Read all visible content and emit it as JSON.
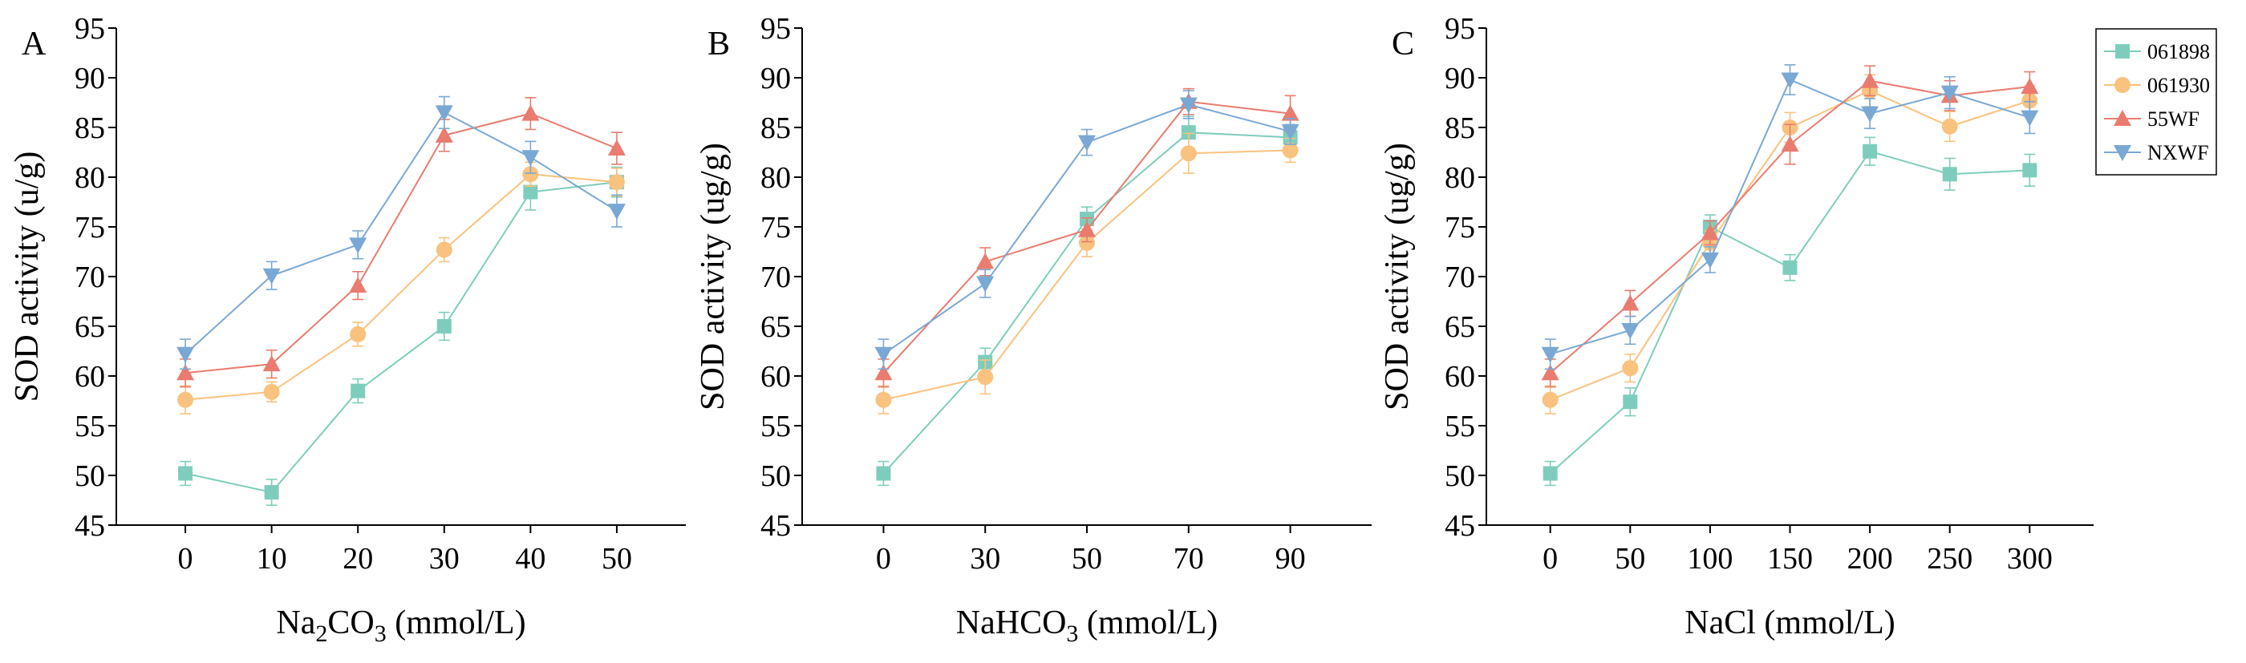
{
  "legend": {
    "entries": [
      {
        "name": "061898",
        "color": "#7ecdbc",
        "marker": "square"
      },
      {
        "name": "061930",
        "color": "#f9c27e",
        "marker": "circle"
      },
      {
        "name": "55WF",
        "color": "#ea7b6f",
        "marker": "triangle-up"
      },
      {
        "name": "NXWF",
        "color": "#7aa8d4",
        "marker": "triangle-down"
      }
    ],
    "placement": "top-right"
  },
  "chart_data": [
    {
      "type": "line",
      "panel_label": "A",
      "xlabel": {
        "prefix": "Na",
        "sub1": "2",
        "mid": "CO",
        "sub2": "3",
        "suffix": " (mmol/L)"
      },
      "ylabel": "SOD activity (u/g)",
      "x": [
        0,
        10,
        20,
        30,
        40,
        50
      ],
      "ylim": [
        45,
        95
      ],
      "yticks": [
        45,
        50,
        55,
        60,
        65,
        70,
        75,
        80,
        85,
        90,
        95
      ],
      "grid": false,
      "series": [
        {
          "name": "061898",
          "values": [
            50.2,
            48.3,
            58.5,
            65.0,
            78.5,
            79.5
          ],
          "errors": [
            1.2,
            1.3,
            1.2,
            1.4,
            1.8,
            1.5
          ]
        },
        {
          "name": "061930",
          "values": [
            57.6,
            58.4,
            64.2,
            72.7,
            80.3,
            79.5
          ],
          "errors": [
            1.4,
            1.0,
            1.2,
            1.2,
            1.2,
            1.4
          ]
        },
        {
          "name": "55WF",
          "values": [
            60.3,
            61.2,
            69.1,
            84.2,
            86.4,
            82.9
          ],
          "errors": [
            1.4,
            1.4,
            1.4,
            1.6,
            1.6,
            1.6
          ]
        },
        {
          "name": "NXWF",
          "values": [
            62.2,
            70.1,
            73.2,
            86.5,
            82.0,
            76.6
          ],
          "errors": [
            1.5,
            1.4,
            1.4,
            1.6,
            1.6,
            1.6
          ]
        }
      ]
    },
    {
      "type": "line",
      "panel_label": "B",
      "xlabel": {
        "prefix": "NaHCO",
        "sub1": "3",
        "mid": "",
        "sub2": "",
        "suffix": " (mmol/L)"
      },
      "ylabel": "SOD activity (ug/g)",
      "x": [
        0,
        30,
        50,
        70,
        90
      ],
      "ylim": [
        45,
        95
      ],
      "yticks": [
        45,
        50,
        55,
        60,
        65,
        70,
        75,
        80,
        85,
        90,
        95
      ],
      "grid": false,
      "series": [
        {
          "name": "061898",
          "values": [
            50.2,
            61.4,
            75.8,
            84.5,
            84.0
          ],
          "errors": [
            1.2,
            1.4,
            1.2,
            1.6,
            1.3
          ]
        },
        {
          "name": "061930",
          "values": [
            57.6,
            59.9,
            73.4,
            82.4,
            82.7
          ],
          "errors": [
            1.4,
            1.7,
            1.4,
            2.0,
            1.2
          ]
        },
        {
          "name": "55WF",
          "values": [
            60.3,
            71.5,
            74.7,
            87.6,
            86.4
          ],
          "errors": [
            1.4,
            1.4,
            1.2,
            1.3,
            1.8
          ]
        },
        {
          "name": "NXWF",
          "values": [
            62.2,
            69.3,
            83.5,
            87.3,
            84.6
          ],
          "errors": [
            1.5,
            1.4,
            1.3,
            1.4,
            1.3
          ]
        }
      ]
    },
    {
      "type": "line",
      "panel_label": "C",
      "xlabel": {
        "prefix": "NaCl",
        "sub1": "",
        "mid": "",
        "sub2": "",
        "suffix": " (mmol/L)"
      },
      "ylabel": "SOD activity (ug/g)",
      "x": [
        0,
        50,
        100,
        150,
        200,
        250,
        300
      ],
      "ylim": [
        45,
        95
      ],
      "yticks": [
        45,
        50,
        55,
        60,
        65,
        70,
        75,
        80,
        85,
        90,
        95
      ],
      "grid": false,
      "series": [
        {
          "name": "061898",
          "values": [
            50.2,
            57.4,
            75.0,
            70.9,
            82.6,
            80.3,
            80.7
          ],
          "errors": [
            1.2,
            1.4,
            1.2,
            1.3,
            1.4,
            1.6,
            1.6
          ]
        },
        {
          "name": "061930",
          "values": [
            57.6,
            60.8,
            73.4,
            85.0,
            88.7,
            85.1,
            87.7
          ],
          "errors": [
            1.4,
            1.4,
            1.2,
            1.5,
            1.6,
            1.5,
            1.5
          ]
        },
        {
          "name": "55WF",
          "values": [
            60.3,
            67.3,
            74.4,
            83.3,
            89.7,
            88.2,
            89.1
          ],
          "errors": [
            1.4,
            1.3,
            1.2,
            2.0,
            1.5,
            1.5,
            1.5
          ]
        },
        {
          "name": "NXWF",
          "values": [
            62.2,
            64.6,
            71.7,
            89.8,
            86.4,
            88.5,
            86.0
          ],
          "errors": [
            1.5,
            1.4,
            1.3,
            1.5,
            1.5,
            1.6,
            1.6
          ]
        }
      ]
    }
  ]
}
